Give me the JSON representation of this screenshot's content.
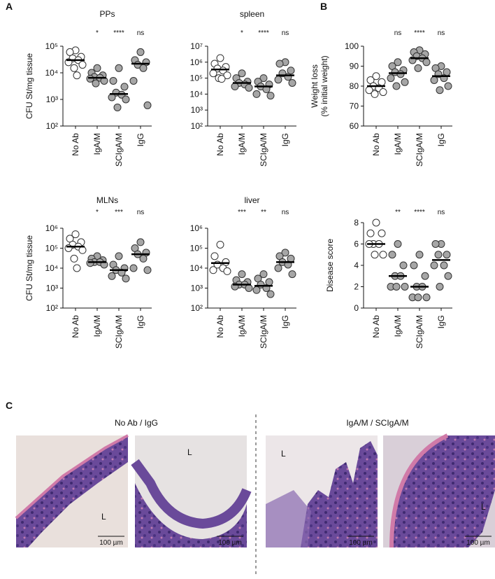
{
  "panel_labels": [
    "A",
    "B",
    "C"
  ],
  "chart_data": [
    {
      "type": "strip",
      "title": "PPs",
      "ylabel": [
        "CFU St/mg tissue"
      ],
      "log_scale": true,
      "categories": [
        "No Ab",
        "IgA/M",
        "SCIgA/M",
        "IgG"
      ],
      "colors": [
        "#ffffff",
        "#a6a6a6",
        "#a6a6a6",
        "#a6a6a6"
      ],
      "values": [
        [
          70000,
          60000,
          40000,
          35000,
          30000,
          25000,
          20000,
          15000,
          8000
        ],
        [
          15000,
          10000,
          8000,
          7000,
          6500,
          6000,
          5000,
          4000
        ],
        [
          15000,
          5000,
          3000,
          1800,
          1500,
          1200,
          1000,
          500
        ],
        [
          60000,
          30000,
          25000,
          20000,
          15000,
          5000,
          600
        ]
      ],
      "medians": [
        30000,
        6500,
        1600,
        22000
      ],
      "significance": [
        null,
        "*",
        "****",
        "ns"
      ],
      "ylim": [
        100,
        100000
      ],
      "yticks": [
        {
          "value": 100,
          "label": "10²"
        },
        {
          "value": 1000,
          "label": "10³"
        },
        {
          "value": 10000,
          "label": "10⁴"
        },
        {
          "value": 100000,
          "label": "10⁵"
        }
      ]
    },
    {
      "type": "strip",
      "title": "spleen",
      "log_scale": true,
      "categories": [
        "No Ab",
        "IgA/M",
        "SCIgA/M",
        "IgG"
      ],
      "colors": [
        "#ffffff",
        "#a6a6a6",
        "#a6a6a6",
        "#a6a6a6"
      ],
      "values": [
        [
          1800000,
          800000,
          500000,
          400000,
          300000,
          200000,
          150000,
          100000,
          90000
        ],
        [
          200000,
          100000,
          60000,
          50000,
          40000,
          30000,
          25000
        ],
        [
          100000,
          60000,
          40000,
          30000,
          20000,
          10000,
          8000
        ],
        [
          1000000,
          800000,
          300000,
          200000,
          120000,
          80000,
          50000
        ]
      ],
      "medians": [
        350000,
        50000,
        30000,
        150000
      ],
      "significance": [
        null,
        "*",
        "****",
        "ns"
      ],
      "ylim": [
        100,
        10000000
      ],
      "yticks": [
        {
          "value": 100,
          "label": "10²"
        },
        {
          "value": 1000,
          "label": "10³"
        },
        {
          "value": 10000,
          "label": "10⁴"
        },
        {
          "value": 100000,
          "label": "10⁵"
        },
        {
          "value": 1000000,
          "label": "10⁶"
        },
        {
          "value": 10000000,
          "label": "10⁷"
        }
      ]
    },
    {
      "type": "strip",
      "title": "MLNs",
      "ylabel": [
        "CFU St/mg tissue"
      ],
      "log_scale": true,
      "categories": [
        "No Ab",
        "IgA/M",
        "SCIgA/M",
        "IgG"
      ],
      "colors": [
        "#ffffff",
        "#a6a6a6",
        "#a6a6a6",
        "#a6a6a6"
      ],
      "values": [
        [
          500000,
          300000,
          200000,
          150000,
          120000,
          100000,
          80000,
          30000,
          10000
        ],
        [
          40000,
          30000,
          25000,
          20000,
          20000,
          18000,
          15000
        ],
        [
          40000,
          15000,
          10000,
          8000,
          6000,
          4000,
          3000
        ],
        [
          200000,
          100000,
          60000,
          50000,
          30000,
          10000,
          8000
        ]
      ],
      "medians": [
        120000,
        20000,
        8000,
        50000
      ],
      "significance": [
        null,
        "*",
        "***",
        "ns"
      ],
      "ylim": [
        100,
        1000000
      ],
      "yticks": [
        {
          "value": 100,
          "label": "10²"
        },
        {
          "value": 1000,
          "label": "10³"
        },
        {
          "value": 10000,
          "label": "10⁴"
        },
        {
          "value": 100000,
          "label": "10⁵"
        },
        {
          "value": 1000000,
          "label": "10⁶"
        }
      ]
    },
    {
      "type": "strip",
      "title": "liver",
      "log_scale": true,
      "categories": [
        "No Ab",
        "IgA/M",
        "SCIgA/M",
        "IgG"
      ],
      "colors": [
        "#ffffff",
        "#a6a6a6",
        "#a6a6a6",
        "#a6a6a6"
      ],
      "values": [
        [
          150000,
          40000,
          20000,
          15000,
          10000,
          8000,
          7000
        ],
        [
          5000,
          2500,
          2000,
          1500,
          1500,
          1200,
          1000
        ],
        [
          5000,
          3000,
          2000,
          1500,
          1000,
          800,
          500
        ],
        [
          60000,
          40000,
          30000,
          20000,
          15000,
          10000,
          5000
        ]
      ],
      "medians": [
        18000,
        1500,
        1300,
        20000
      ],
      "significance": [
        null,
        "***",
        "**",
        "ns"
      ],
      "ylim": [
        100,
        1000000
      ],
      "yticks": [
        {
          "value": 100,
          "label": "10²"
        },
        {
          "value": 1000,
          "label": "10³"
        },
        {
          "value": 10000,
          "label": "10⁴"
        },
        {
          "value": 100000,
          "label": "10⁵"
        },
        {
          "value": 1000000,
          "label": "10⁶"
        }
      ]
    },
    {
      "type": "strip",
      "ylabel": [
        "Weight loss",
        "(% initial weight)"
      ],
      "categories": [
        "No Ab",
        "IgA/M",
        "SCIgA/M",
        "IgG"
      ],
      "colors": [
        "#ffffff",
        "#a6a6a6",
        "#a6a6a6",
        "#a6a6a6"
      ],
      "values": [
        [
          85,
          83,
          82,
          80,
          79,
          78,
          77,
          76
        ],
        [
          92,
          90,
          88,
          87,
          86,
          84,
          82,
          80
        ],
        [
          98,
          97,
          96,
          95,
          94,
          93,
          92,
          89
        ],
        [
          90,
          89,
          87,
          86,
          84,
          83,
          80,
          78
        ]
      ],
      "medians": [
        80,
        86.5,
        94,
        85
      ],
      "significance": [
        null,
        "ns",
        "****",
        "ns"
      ],
      "ylim": [
        60,
        100
      ],
      "yticks": [
        60,
        70,
        80,
        90,
        100
      ]
    },
    {
      "type": "strip",
      "ylabel": [
        "Disease score"
      ],
      "categories": [
        "No Ab",
        "IgA/M",
        "SCIgA/M",
        "IgG"
      ],
      "colors": [
        "#ffffff",
        "#a6a6a6",
        "#a6a6a6",
        "#a6a6a6"
      ],
      "values": [
        [
          8,
          7,
          7,
          6,
          6,
          6,
          5,
          5
        ],
        [
          6,
          5,
          4,
          3,
          3,
          2,
          2,
          2
        ],
        [
          5,
          4,
          3,
          2,
          2,
          1,
          1,
          1
        ],
        [
          6,
          6,
          5,
          5,
          4,
          4,
          3,
          2
        ]
      ],
      "medians": [
        6,
        3,
        2,
        4.5
      ],
      "significance": [
        null,
        "**",
        "****",
        "ns"
      ],
      "ylim": [
        0,
        8
      ],
      "yticks": [
        0,
        2,
        4,
        6,
        8
      ]
    }
  ],
  "histology": {
    "groups": [
      "No Ab / IgG",
      "IgA/M / SCIgA/M"
    ],
    "lumen_labels": [
      "L",
      "L",
      "L",
      "L"
    ],
    "scale_bars": [
      "100 µm",
      "100 µm",
      "100 µm",
      "100 µm"
    ]
  }
}
